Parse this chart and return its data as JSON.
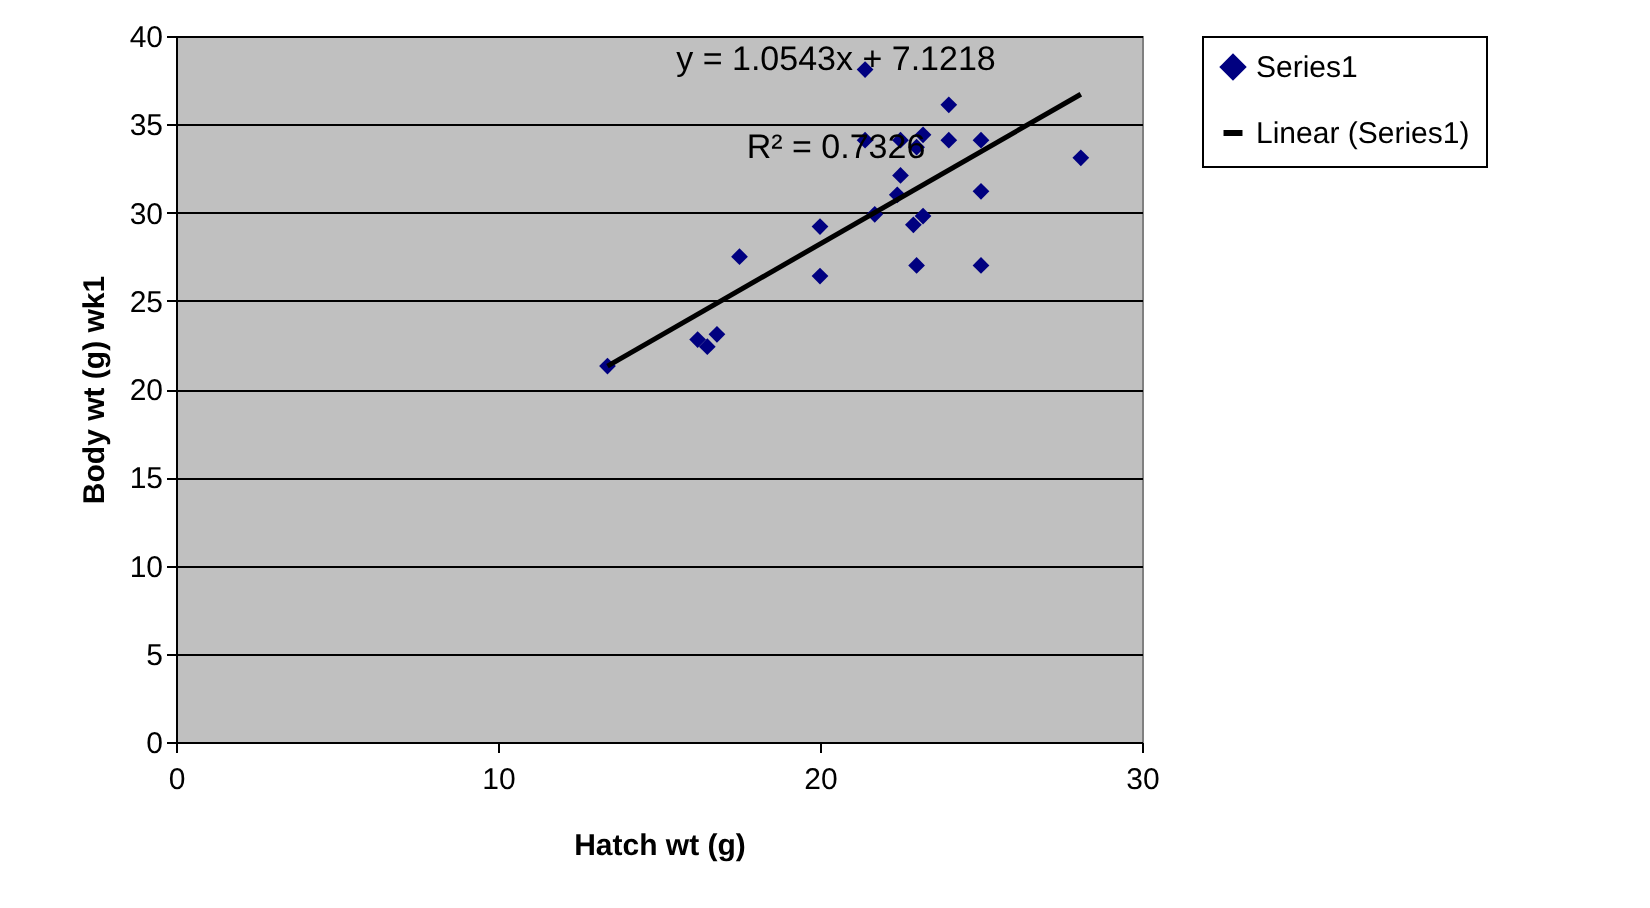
{
  "chart_data": {
    "type": "scatter",
    "xlabel": "Hatch wt (g)",
    "ylabel": "Body wt (g) wk1",
    "annotations": [
      "y = 1.0543x + 7.1218",
      "R² = 0.7326"
    ],
    "series": [
      {
        "name": "Series1",
        "type": "scatter",
        "color": "#000080",
        "marker": "diamond",
        "x": [
          13.4,
          16.2,
          16.5,
          16.8,
          17.5,
          20.0,
          20.0,
          21.4,
          21.4,
          21.7,
          22.5,
          22.4,
          22.5,
          22.9,
          23.2,
          23.0,
          23.0,
          23.2,
          24.0,
          24.0,
          25.0,
          25.0,
          25.0,
          28.1
        ],
        "values": [
          21.3,
          22.8,
          22.4,
          23.1,
          27.5,
          29.2,
          26.4,
          38.1,
          34.1,
          29.9,
          32.1,
          31.0,
          34.1,
          29.3,
          29.8,
          27.0,
          33.7,
          34.4,
          36.1,
          34.1,
          34.1,
          31.2,
          27.0,
          33.1
        ]
      },
      {
        "name": "Linear (Series1)",
        "type": "line",
        "color": "#000000",
        "line_style": "solid",
        "x": [
          13.4,
          28.1
        ],
        "values": [
          21.3,
          36.7
        ]
      }
    ],
    "xlim": [
      0,
      30
    ],
    "xticks": [
      0,
      10,
      20,
      30
    ],
    "ylim": [
      0,
      40
    ],
    "yticks": [
      0,
      5,
      10,
      15,
      20,
      25,
      30,
      35,
      40
    ],
    "grid": "y",
    "legend": "right"
  }
}
